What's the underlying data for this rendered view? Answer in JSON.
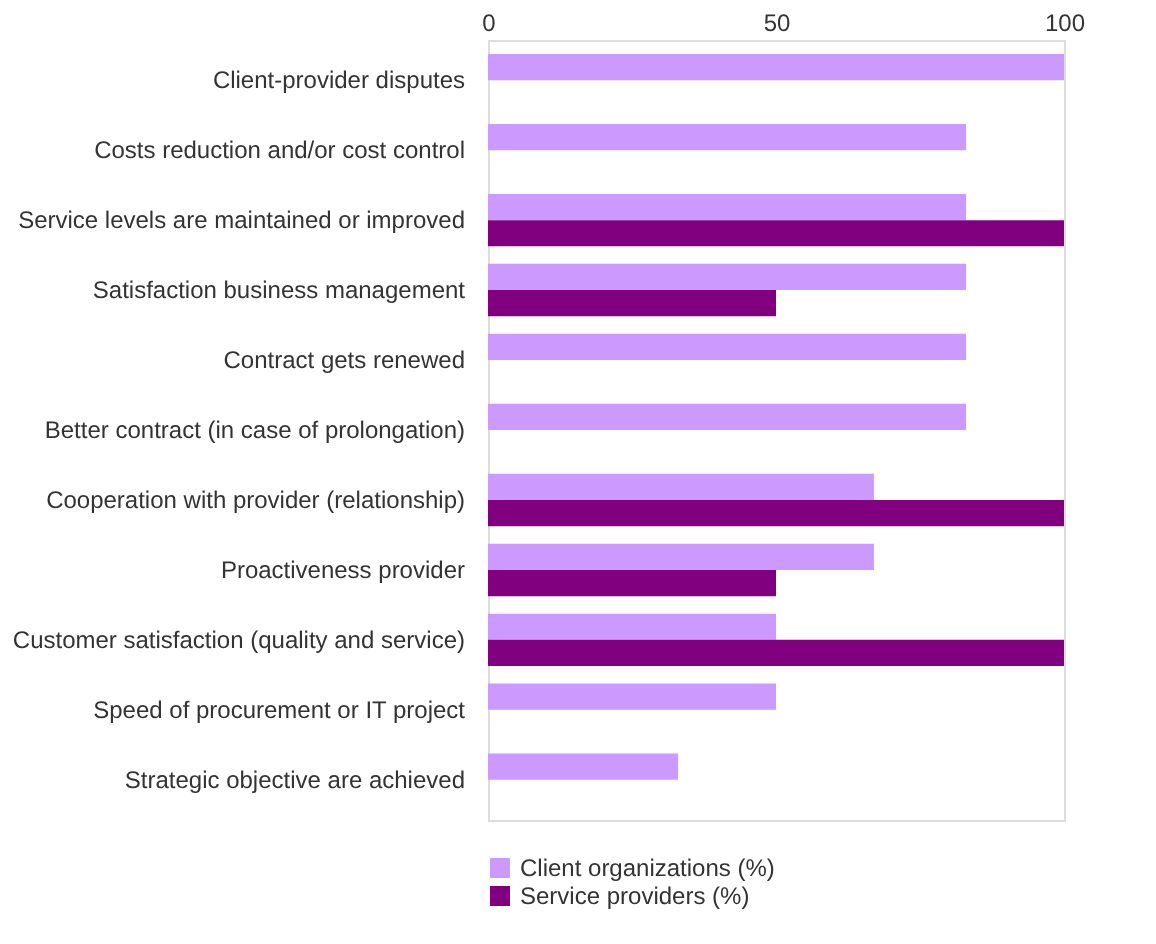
{
  "chart_data": {
    "type": "bar",
    "orientation": "horizontal",
    "categories": [
      "Client-provider disputes",
      "Costs reduction and/or cost control",
      "Service levels are maintained or improved",
      "Satisfaction business management",
      "Contract gets renewed",
      "Better contract (in case of prolongation)",
      "Cooperation with provider (relationship)",
      "Proactiveness provider",
      "Customer satisfaction (quality and service)",
      "Speed of procurement or IT project",
      "Strategic objective are achieved"
    ],
    "series": [
      {
        "name": "Client organizations (%)",
        "color": "#cc99ff",
        "values": [
          100,
          83,
          83,
          83,
          83,
          83,
          67,
          67,
          50,
          50,
          33
        ]
      },
      {
        "name": "Service providers (%)",
        "color": "#800080",
        "values": [
          null,
          null,
          100,
          50,
          null,
          null,
          100,
          50,
          100,
          null,
          null
        ]
      }
    ],
    "xlim": [
      0,
      100
    ],
    "xticks": [
      0,
      50,
      100
    ],
    "grid": false,
    "legend": "bottom"
  }
}
